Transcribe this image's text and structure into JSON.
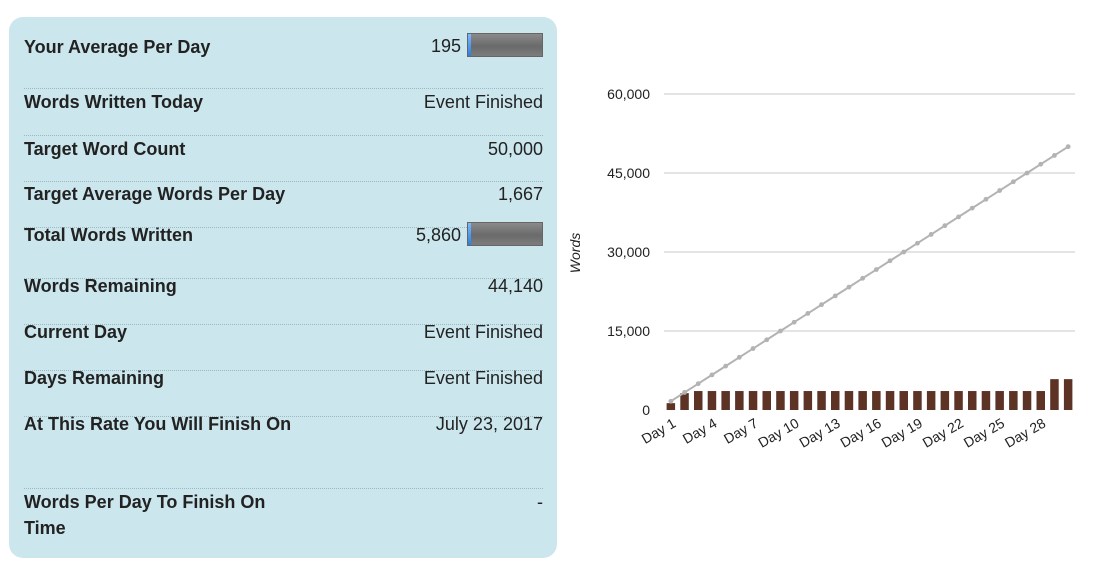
{
  "stats": {
    "average_per_day": {
      "label": "Your Average Per Day",
      "value": "195",
      "progress": 0.04
    },
    "words_today": {
      "label": "Words Written Today",
      "value": "Event Finished"
    },
    "target_word_count": {
      "label": "Target Word Count",
      "value": "50,000"
    },
    "target_avg_per_day": {
      "label": "Target Average Words Per Day",
      "value": "1,667"
    },
    "total_words": {
      "label": "Total Words Written",
      "value": "5,860",
      "progress": 0.04
    },
    "words_remaining": {
      "label": "Words Remaining",
      "value": "44,140"
    },
    "current_day": {
      "label": "Current Day",
      "value": "Event Finished"
    },
    "days_remaining": {
      "label": "Days Remaining",
      "value": "Event Finished"
    },
    "finish_date": {
      "label": "At This Rate You Will Finish On",
      "value": "July 23, 2017"
    },
    "words_per_day_to_finish": {
      "label": "Words Per Day To Finish On Time",
      "value": "-"
    }
  },
  "colors": {
    "panel_bg": "#cbe6ed",
    "bar": "#5c3325",
    "target_line": "#b3b3b3",
    "progress_fill": "#2b7fe0",
    "progress_track": "#777777"
  },
  "chart_data": {
    "type": "bar",
    "ylabel": "Words",
    "ylim": [
      0,
      60000
    ],
    "yticks": [
      0,
      15000,
      30000,
      45000,
      60000
    ],
    "ytick_labels": [
      "0",
      "15,000",
      "30,000",
      "45,000",
      "60,000"
    ],
    "xtick_labels": [
      "Day 1",
      "Day 4",
      "Day 7",
      "Day 10",
      "Day 13",
      "Day 16",
      "Day 19",
      "Day 22",
      "Day 25",
      "Day 28"
    ],
    "grid": true,
    "legend": "none",
    "categories": [
      "Day 1",
      "Day 2",
      "Day 3",
      "Day 4",
      "Day 5",
      "Day 6",
      "Day 7",
      "Day 8",
      "Day 9",
      "Day 10",
      "Day 11",
      "Day 12",
      "Day 13",
      "Day 14",
      "Day 15",
      "Day 16",
      "Day 17",
      "Day 18",
      "Day 19",
      "Day 20",
      "Day 21",
      "Day 22",
      "Day 23",
      "Day 24",
      "Day 25",
      "Day 26",
      "Day 27",
      "Day 28",
      "Day 29",
      "Day 30"
    ],
    "series": [
      {
        "type": "bar",
        "values": [
          1300,
          3200,
          3600,
          3600,
          3600,
          3600,
          3600,
          3600,
          3600,
          3600,
          3600,
          3600,
          3600,
          3600,
          3600,
          3600,
          3600,
          3600,
          3600,
          3600,
          3600,
          3600,
          3600,
          3600,
          3600,
          3600,
          3600,
          3600,
          5860,
          5860
        ]
      },
      {
        "type": "line",
        "values": [
          1667,
          3333,
          5000,
          6667,
          8333,
          10000,
          11667,
          13333,
          15000,
          16667,
          18333,
          20000,
          21667,
          23333,
          25000,
          26667,
          28333,
          30000,
          31667,
          33333,
          35000,
          36667,
          38333,
          40000,
          41667,
          43333,
          45000,
          46667,
          48333,
          50000
        ]
      }
    ]
  }
}
